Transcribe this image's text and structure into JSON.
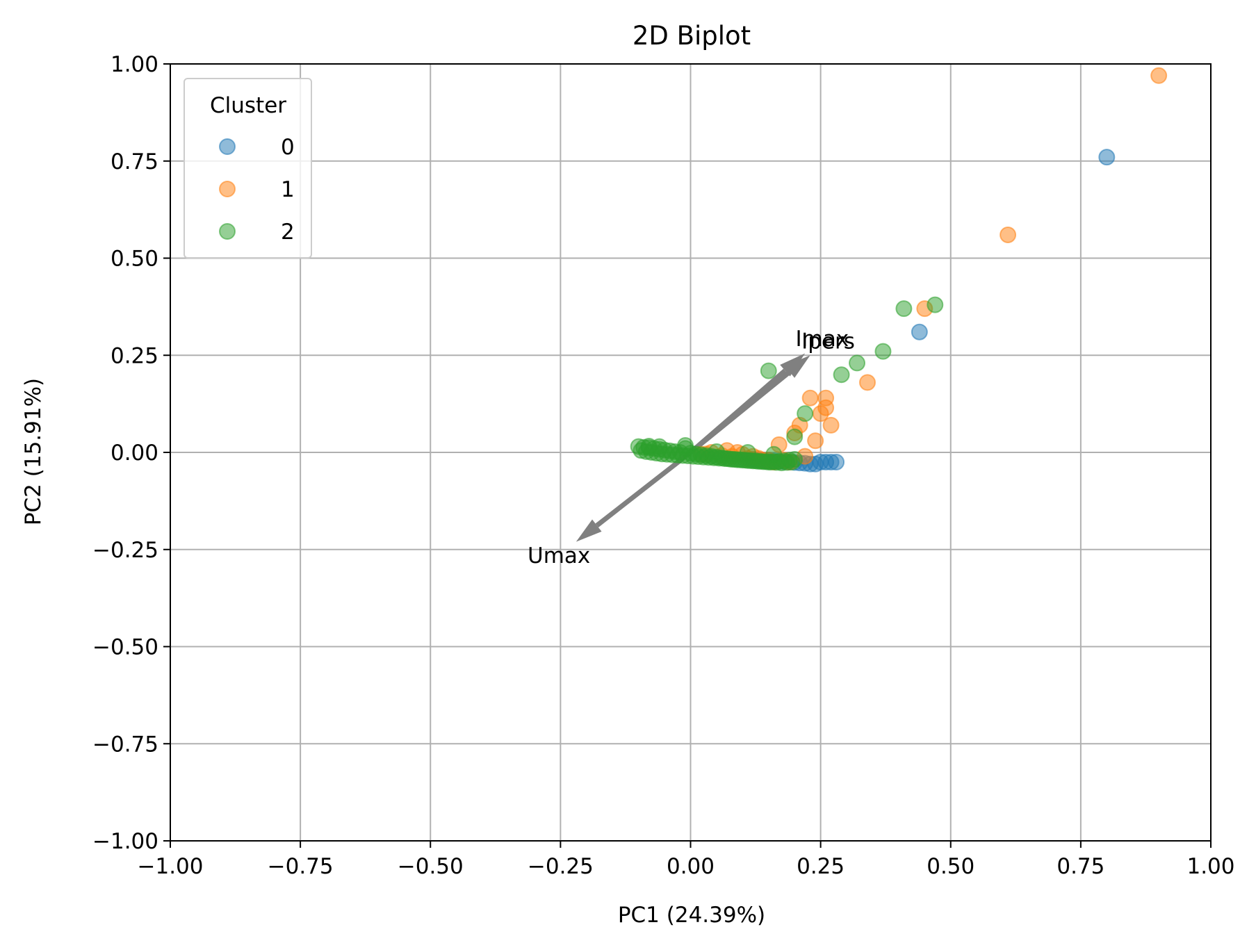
{
  "chart_data": {
    "type": "scatter",
    "title": "2D Biplot",
    "xlabel": "PC1 (24.39%)",
    "ylabel": "PC2 (15.91%)",
    "xlim": [
      -1.0,
      1.0
    ],
    "ylim": [
      -1.0,
      1.0
    ],
    "xticks": [
      "−1.00",
      "−0.75",
      "−0.50",
      "−0.25",
      "0.00",
      "0.25",
      "0.50",
      "0.75",
      "1.00"
    ],
    "yticks": [
      "1.00",
      "0.75",
      "0.50",
      "0.25",
      "0.00",
      "−0.25",
      "−0.50",
      "−0.75",
      "−1.00"
    ],
    "xtick_values": [
      -1.0,
      -0.75,
      -0.5,
      -0.25,
      0.0,
      0.25,
      0.5,
      0.75,
      1.0
    ],
    "ytick_values": [
      1.0,
      0.75,
      0.5,
      0.25,
      0.0,
      -0.25,
      -0.5,
      -0.75,
      -1.0
    ],
    "grid": true,
    "legend": {
      "title": "Cluster",
      "placement": "upper-left",
      "entries": [
        "0",
        "1",
        "2"
      ]
    },
    "series": [
      {
        "name": "0",
        "color": "#1f77b4",
        "points": [
          [
            0.8,
            0.76
          ],
          [
            0.44,
            0.31
          ],
          [
            0.28,
            -0.025
          ],
          [
            0.27,
            -0.025
          ],
          [
            0.26,
            -0.025
          ],
          [
            0.25,
            -0.025
          ],
          [
            0.24,
            -0.03
          ],
          [
            0.23,
            -0.03
          ],
          [
            0.22,
            -0.028
          ],
          [
            0.21,
            -0.027
          ],
          [
            0.2,
            -0.026
          ],
          [
            0.19,
            -0.025
          ],
          [
            0.18,
            -0.024
          ],
          [
            0.17,
            -0.023
          ],
          [
            0.16,
            -0.022
          ],
          [
            0.15,
            -0.021
          ],
          [
            0.14,
            -0.02
          ],
          [
            0.13,
            -0.019
          ],
          [
            0.12,
            -0.018
          ]
        ]
      },
      {
        "name": "1",
        "color": "#ff7f0e",
        "points": [
          [
            0.9,
            0.97
          ],
          [
            0.61,
            0.56
          ],
          [
            0.45,
            0.37
          ],
          [
            0.34,
            0.18
          ],
          [
            0.27,
            0.07
          ],
          [
            0.26,
            0.14
          ],
          [
            0.26,
            0.115
          ],
          [
            0.25,
            0.1
          ],
          [
            0.23,
            0.14
          ],
          [
            0.24,
            0.03
          ],
          [
            0.21,
            0.07
          ],
          [
            0.2,
            0.05
          ],
          [
            0.17,
            0.02
          ],
          [
            0.18,
            -0.02
          ],
          [
            0.19,
            -0.025
          ],
          [
            0.16,
            -0.025
          ],
          [
            0.14,
            -0.02
          ],
          [
            0.12,
            -0.01
          ],
          [
            0.1,
            -0.005
          ],
          [
            0.07,
            0.005
          ],
          [
            0.04,
            0.0
          ],
          [
            0.02,
            -0.005
          ],
          [
            0.08,
            -0.01
          ],
          [
            0.11,
            -0.015
          ],
          [
            0.15,
            -0.02
          ],
          [
            0.22,
            -0.01
          ],
          [
            0.09,
            0.0
          ],
          [
            0.13,
            -0.015
          ],
          [
            0.06,
            -0.008
          ],
          [
            0.03,
            -0.004
          ]
        ]
      },
      {
        "name": "2",
        "color": "#2ca02c",
        "points": [
          [
            0.47,
            0.38
          ],
          [
            0.41,
            0.37
          ],
          [
            0.37,
            0.26
          ],
          [
            0.32,
            0.23
          ],
          [
            0.29,
            0.2
          ],
          [
            0.15,
            0.21
          ],
          [
            0.22,
            0.1
          ],
          [
            0.2,
            0.04
          ],
          [
            -0.1,
            0.015
          ],
          [
            -0.09,
            0.013
          ],
          [
            -0.08,
            0.012
          ],
          [
            -0.07,
            0.01
          ],
          [
            -0.06,
            0.008
          ],
          [
            -0.05,
            0.006
          ],
          [
            -0.04,
            0.004
          ],
          [
            -0.03,
            0.002
          ],
          [
            -0.02,
            0.0
          ],
          [
            -0.01,
            0.01
          ],
          [
            0.0,
            -0.002
          ],
          [
            0.01,
            -0.004
          ],
          [
            0.02,
            -0.006
          ],
          [
            0.03,
            -0.008
          ],
          [
            0.04,
            -0.01
          ],
          [
            0.05,
            -0.012
          ],
          [
            0.06,
            -0.014
          ],
          [
            0.07,
            -0.016
          ],
          [
            0.08,
            -0.018
          ],
          [
            0.09,
            -0.019
          ],
          [
            0.1,
            -0.02
          ],
          [
            0.11,
            -0.021
          ],
          [
            0.12,
            -0.022
          ],
          [
            0.13,
            -0.023
          ],
          [
            0.14,
            -0.024
          ],
          [
            0.15,
            -0.025
          ],
          [
            0.16,
            -0.024
          ],
          [
            0.17,
            -0.023
          ],
          [
            0.18,
            -0.022
          ],
          [
            0.19,
            -0.02
          ],
          [
            0.2,
            -0.018
          ],
          [
            -0.095,
            0.005
          ],
          [
            -0.085,
            0.002
          ],
          [
            -0.075,
            0.0
          ],
          [
            -0.065,
            -0.002
          ],
          [
            -0.055,
            -0.004
          ],
          [
            -0.045,
            -0.005
          ],
          [
            -0.035,
            -0.006
          ],
          [
            -0.025,
            -0.007
          ],
          [
            -0.015,
            -0.008
          ],
          [
            -0.005,
            -0.009
          ],
          [
            0.005,
            -0.01
          ],
          [
            0.015,
            -0.011
          ],
          [
            0.025,
            -0.012
          ],
          [
            0.035,
            -0.013
          ],
          [
            0.045,
            -0.014
          ],
          [
            0.055,
            -0.015
          ],
          [
            0.065,
            -0.016
          ],
          [
            0.075,
            -0.017
          ],
          [
            0.085,
            -0.018
          ],
          [
            0.095,
            -0.019
          ],
          [
            0.105,
            -0.02
          ],
          [
            0.115,
            -0.021
          ],
          [
            0.125,
            -0.022
          ],
          [
            0.135,
            -0.023
          ],
          [
            0.145,
            -0.024
          ],
          [
            0.155,
            -0.025
          ],
          [
            0.165,
            -0.026
          ],
          [
            0.175,
            -0.027
          ],
          [
            0.185,
            -0.026
          ],
          [
            0.195,
            -0.025
          ],
          [
            -0.06,
            0.015
          ],
          [
            -0.01,
            0.018
          ],
          [
            0.05,
            0.002
          ],
          [
            0.11,
            0.0
          ],
          [
            0.16,
            -0.005
          ],
          [
            -0.08,
            0.016
          ]
        ]
      }
    ],
    "loadings": [
      {
        "label": "Ipers",
        "x": 0.23,
        "y": 0.25,
        "color": "#808080"
      },
      {
        "label": "Imax",
        "x": 0.22,
        "y": 0.255,
        "color": "#808080"
      },
      {
        "label": "Umax",
        "x": -0.22,
        "y": -0.23,
        "color": "#808080"
      }
    ]
  }
}
